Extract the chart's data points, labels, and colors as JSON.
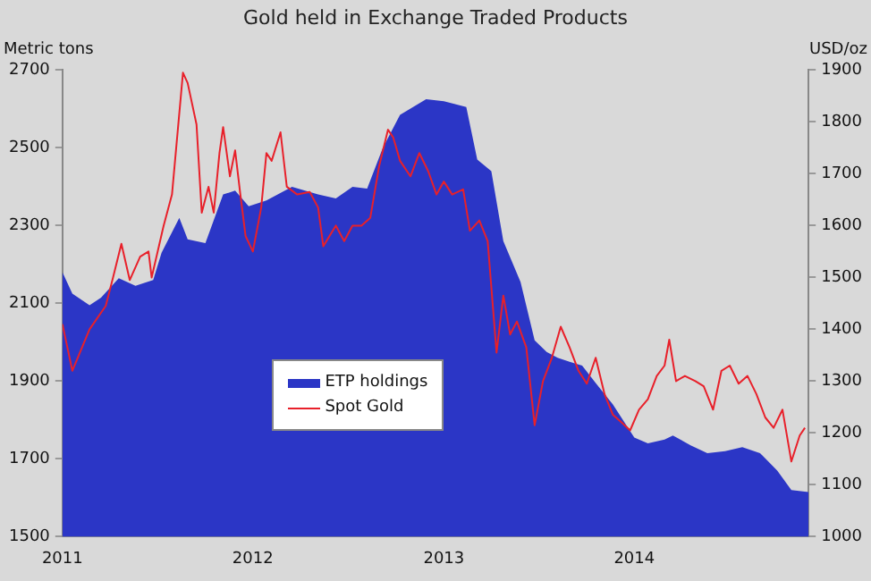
{
  "chart_data": {
    "type": "line",
    "title": "Gold held in Exchange Traded Products",
    "ylabel": "Metric tons",
    "y2label": "USD/oz",
    "xlim": [
      "2011-01-01",
      "2014-12-01"
    ],
    "xticks": [
      "2011",
      "2012",
      "2013",
      "2014"
    ],
    "ylim": [
      1500,
      2700
    ],
    "yticks": [
      1500,
      1700,
      1900,
      2100,
      2300,
      2500,
      2700
    ],
    "y2lim": [
      1000,
      1900
    ],
    "y2ticks": [
      1000,
      1100,
      1200,
      1300,
      1400,
      1500,
      1600,
      1700,
      1800,
      1900
    ],
    "grid": false,
    "legend": "center left",
    "marker": "none",
    "series": [
      {
        "name": "ETP holdings",
        "type": "area",
        "color": "#2b36c6",
        "x": [
          "2011-01-01",
          "2011-01-20",
          "2011-02-22",
          "2011-03-16",
          "2011-04-19",
          "2011-05-21",
          "2011-06-24",
          "2011-07-10",
          "2011-08-13",
          "2011-08-29",
          "2011-10-02",
          "2011-11-05",
          "2011-11-28",
          "2011-12-24",
          "2012-01-27",
          "2012-03-16",
          "2012-05-05",
          "2012-06-08",
          "2012-07-10",
          "2012-08-07",
          "2012-09-06",
          "2012-10-09",
          "2012-11-28",
          "2013-01-01",
          "2013-02-13",
          "2013-03-06",
          "2013-04-02",
          "2013-04-25",
          "2013-05-28",
          "2013-06-24",
          "2013-07-17",
          "2013-08-07",
          "2013-08-30",
          "2013-09-23",
          "2013-10-19",
          "2013-11-21",
          "2014-01-01",
          "2014-01-27",
          "2014-02-28",
          "2014-03-16",
          "2014-04-19",
          "2014-05-21",
          "2014-06-24",
          "2014-07-27",
          "2014-08-30",
          "2014-10-02",
          "2014-10-29",
          "2014-12-01"
        ],
        "values": [
          2180,
          2125,
          2095,
          2115,
          2165,
          2145,
          2160,
          2230,
          2320,
          2265,
          2255,
          2380,
          2390,
          2350,
          2365,
          2400,
          2380,
          2370,
          2400,
          2395,
          2500,
          2585,
          2625,
          2620,
          2605,
          2470,
          2440,
          2260,
          2155,
          2005,
          1975,
          1960,
          1950,
          1940,
          1895,
          1840,
          1755,
          1740,
          1750,
          1760,
          1735,
          1715,
          1720,
          1730,
          1715,
          1670,
          1620,
          1615
        ]
      },
      {
        "name": "Spot Gold",
        "type": "line",
        "axis": "y2",
        "color": "#e8202a",
        "x": [
          "2011-01-01",
          "2011-01-20",
          "2011-02-22",
          "2011-03-25",
          "2011-04-08",
          "2011-04-24",
          "2011-05-10",
          "2011-05-30",
          "2011-06-15",
          "2011-06-21",
          "2011-07-14",
          "2011-07-30",
          "2011-08-20",
          "2011-08-29",
          "2011-09-15",
          "2011-09-25",
          "2011-10-08",
          "2011-10-18",
          "2011-10-29",
          "2011-11-05",
          "2011-11-18",
          "2011-11-28",
          "2011-12-08",
          "2011-12-18",
          "2012-01-01",
          "2012-01-17",
          "2012-01-27",
          "2012-02-06",
          "2012-02-23",
          "2012-03-06",
          "2012-03-26",
          "2012-04-19",
          "2012-05-05",
          "2012-05-15",
          "2012-06-08",
          "2012-06-24",
          "2012-07-10",
          "2012-07-27",
          "2012-08-13",
          "2012-08-30",
          "2012-09-16",
          "2012-09-26",
          "2012-10-09",
          "2012-10-29",
          "2012-11-15",
          "2012-12-02",
          "2012-12-18",
          "2013-01-01",
          "2013-01-17",
          "2013-02-07",
          "2013-02-20",
          "2013-03-10",
          "2013-03-26",
          "2013-04-12",
          "2013-04-25",
          "2013-05-08",
          "2013-05-21",
          "2013-06-08",
          "2013-06-24",
          "2013-07-10",
          "2013-07-27",
          "2013-08-13",
          "2013-08-30",
          "2013-09-16",
          "2013-10-02",
          "2013-10-19",
          "2013-11-05",
          "2013-11-21",
          "2013-12-08",
          "2013-12-24",
          "2014-01-10",
          "2014-01-27",
          "2014-02-13",
          "2014-02-28",
          "2014-03-09",
          "2014-03-22",
          "2014-04-08",
          "2014-04-28",
          "2014-05-14",
          "2014-06-01",
          "2014-06-17",
          "2014-07-03",
          "2014-07-20",
          "2014-08-06",
          "2014-08-23",
          "2014-09-09",
          "2014-09-25",
          "2014-10-12",
          "2014-10-29",
          "2014-11-14",
          "2014-11-24"
        ],
        "values": [
          1410,
          1320,
          1400,
          1445,
          1500,
          1565,
          1495,
          1540,
          1550,
          1500,
          1600,
          1660,
          1895,
          1875,
          1795,
          1625,
          1675,
          1625,
          1740,
          1790,
          1695,
          1745,
          1660,
          1580,
          1550,
          1635,
          1740,
          1725,
          1780,
          1675,
          1660,
          1665,
          1635,
          1560,
          1600,
          1570,
          1600,
          1600,
          1615,
          1715,
          1785,
          1770,
          1725,
          1695,
          1740,
          1705,
          1660,
          1685,
          1660,
          1670,
          1590,
          1610,
          1570,
          1355,
          1465,
          1390,
          1415,
          1365,
          1215,
          1300,
          1345,
          1405,
          1365,
          1320,
          1295,
          1345,
          1275,
          1235,
          1220,
          1205,
          1245,
          1265,
          1310,
          1330,
          1380,
          1300,
          1310,
          1300,
          1290,
          1245,
          1320,
          1330,
          1295,
          1310,
          1275,
          1230,
          1210,
          1245,
          1145,
          1195,
          1210
        ]
      }
    ]
  }
}
